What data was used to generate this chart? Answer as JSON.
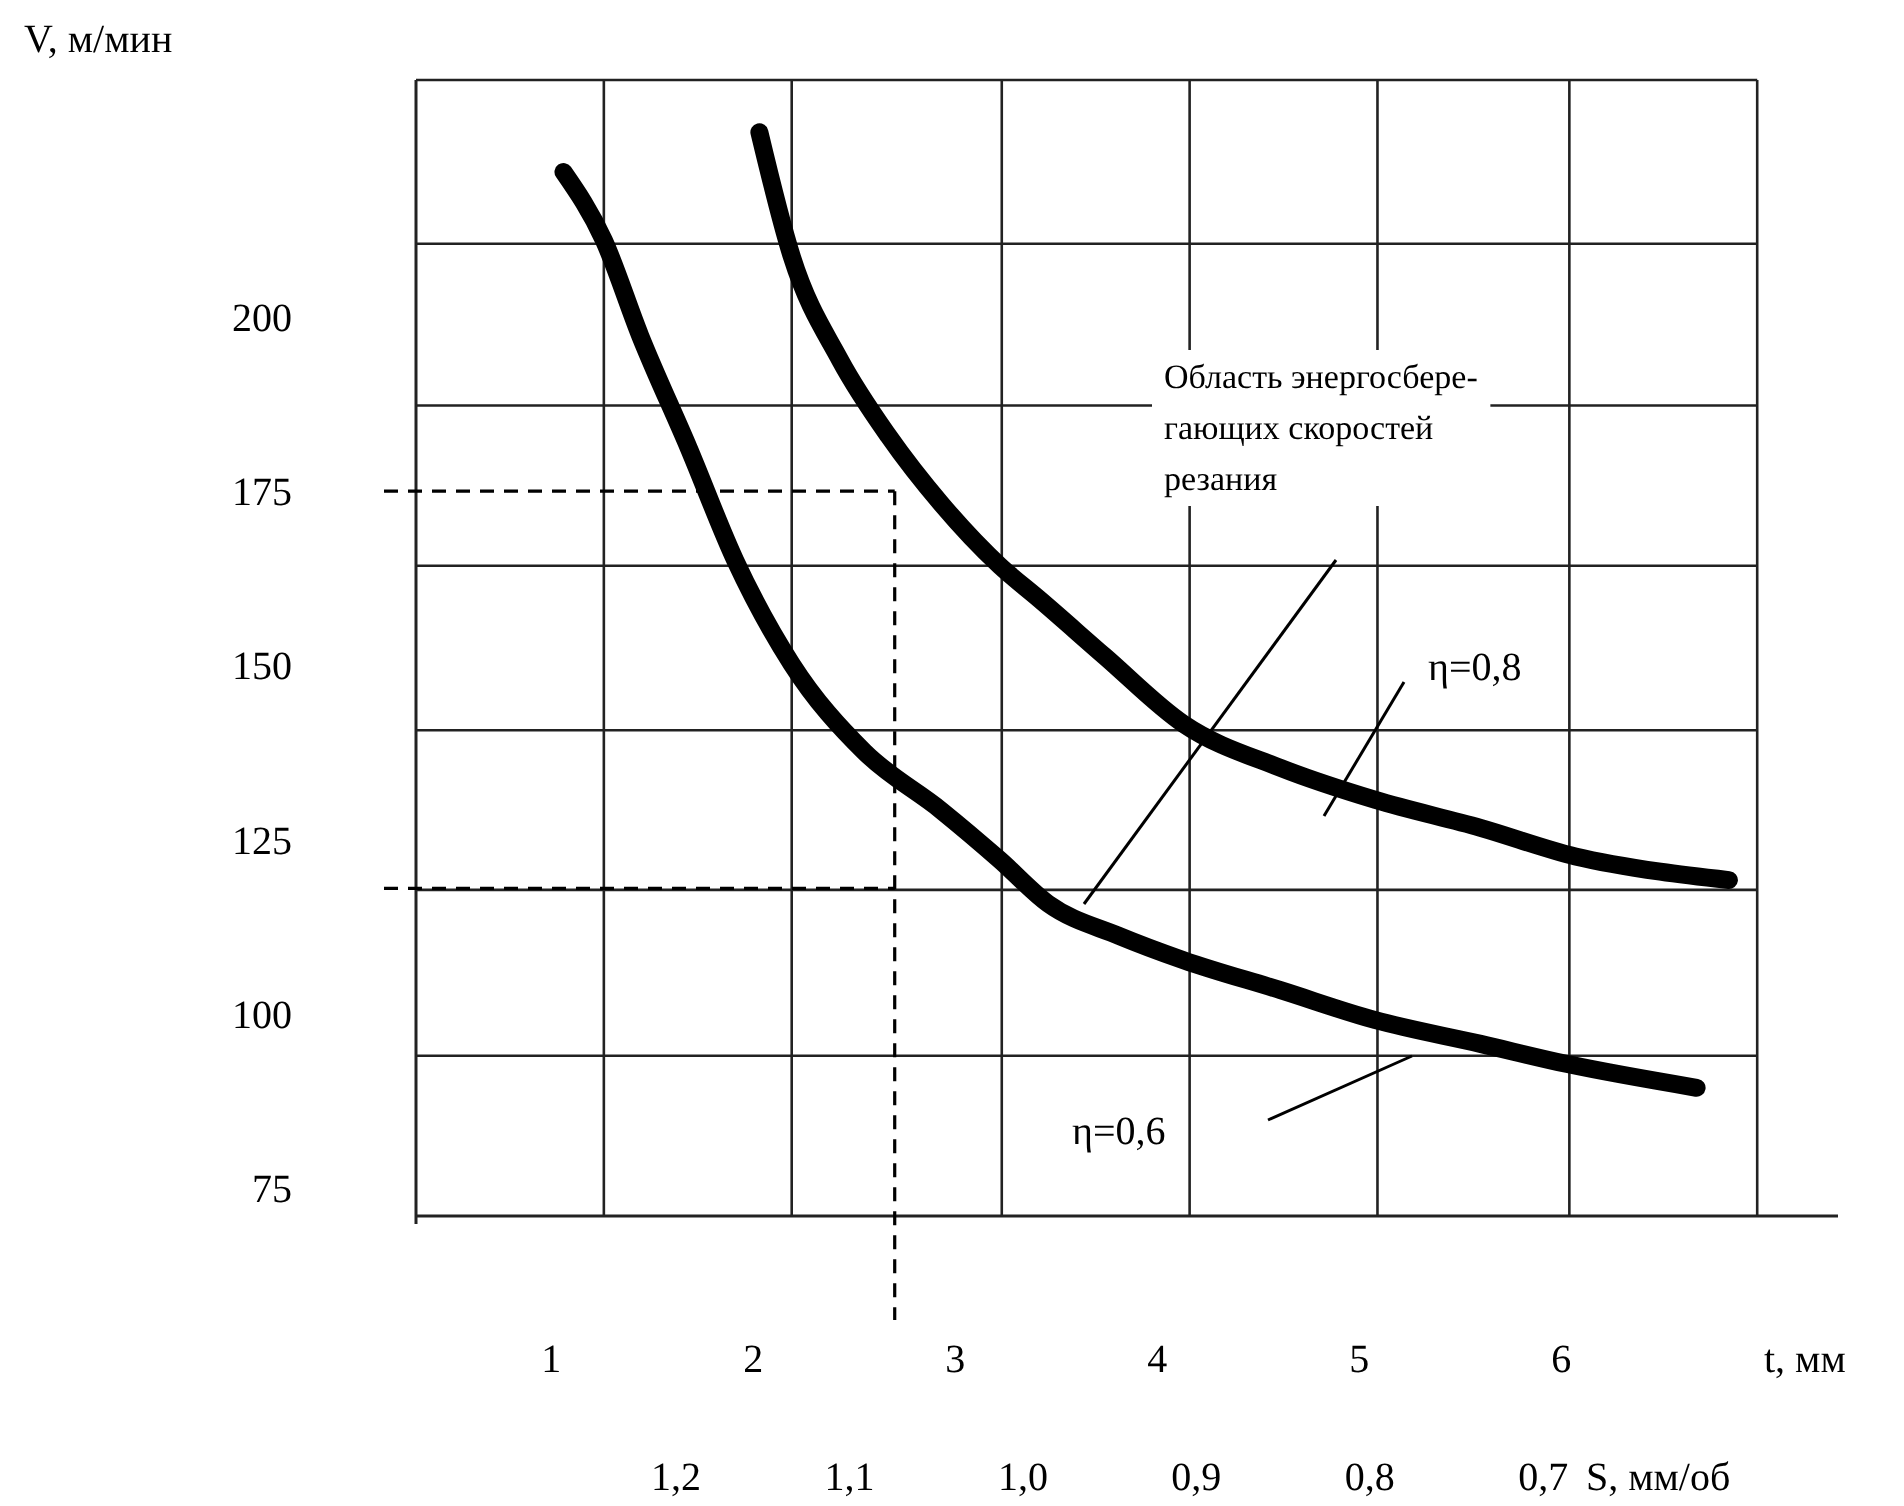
{
  "chart_data": {
    "type": "line",
    "ylabel": "V, м/мин",
    "xlabel": "t, мм",
    "x2label": "S, мм/об",
    "xlim": [
      0.33,
      7.37
    ],
    "ylim": [
      71,
      234
    ],
    "x2lim": [
      1.35,
      0.53
    ],
    "xticks": [
      1,
      2,
      3,
      4,
      5,
      6,
      {
        "value": 1.26,
        "label": null
      },
      {
        "value": 2.19,
        "label": null
      },
      {
        "value": 3.23,
        "label": null
      },
      {
        "value": 4.16,
        "label": null
      },
      {
        "value": 5.09,
        "label": null
      },
      {
        "value": 6.04,
        "label": null
      },
      {
        "value": 6.97,
        "label": null
      }
    ],
    "yticks": [
      200,
      175,
      150,
      125,
      100,
      75,
      {
        "value": 210.5,
        "label": null
      },
      {
        "value": 187.3,
        "label": null
      },
      {
        "value": 164.3,
        "label": null
      },
      {
        "value": 140.7,
        "label": null
      },
      {
        "value": 117.8,
        "label": null
      },
      {
        "value": 94,
        "label": null
      },
      {
        "value": 234,
        "label": null
      }
    ],
    "x2ticks": [
      {
        "value": 1.2,
        "label": "1,2"
      },
      {
        "value": 1.1,
        "label": "1,1"
      },
      {
        "value": 1.0,
        "label": "1,0"
      },
      {
        "value": 0.9,
        "label": "0,9"
      },
      {
        "value": 0.8,
        "label": "0,8"
      },
      {
        "value": 0.7,
        "label": "0,7"
      }
    ],
    "grid": true,
    "marker": "none",
    "line_style": "solid",
    "series": [
      {
        "color": "#000000",
        "x": [
          2.03,
          2.19,
          2.43,
          2.67,
          2.93,
          3.22,
          3.42,
          3.74,
          4.13,
          4.61,
          5.08,
          5.6,
          6.07,
          6.49,
          6.83
        ],
        "values": [
          226.5,
          208.7,
          193.8,
          182.9,
          173.2,
          164.3,
          159.4,
          151.3,
          141.6,
          135.3,
          130.7,
          126.7,
          122.6,
          120.4,
          119.2
        ]
      },
      {
        "color": "#000000",
        "x": [
          1.06,
          1.26,
          1.44,
          1.68,
          1.91,
          2.19,
          2.55,
          2.93,
          3.22,
          3.46,
          3.81,
          4.13,
          4.61,
          5.08,
          5.6,
          6.03,
          6.67
        ],
        "values": [
          220.8,
          211,
          197.3,
          181.2,
          165.1,
          150.2,
          137.6,
          129.2,
          122.1,
          115.8,
          111.2,
          107.7,
          103.4,
          99.1,
          95.7,
          92.8,
          89.4
        ]
      }
    ],
    "ref_lines": [
      {
        "axis": "y",
        "value": 175,
        "line_style": "dashed"
      },
      {
        "axis": "y",
        "value": 118,
        "line_style": "dashed"
      },
      {
        "axis": "x",
        "value": 2.7,
        "line_style": "dashed"
      }
    ],
    "annotations": [
      "Область энергосбере-\nгающих скоростей\nрезания",
      "η=0,8",
      "η=0,6"
    ]
  }
}
